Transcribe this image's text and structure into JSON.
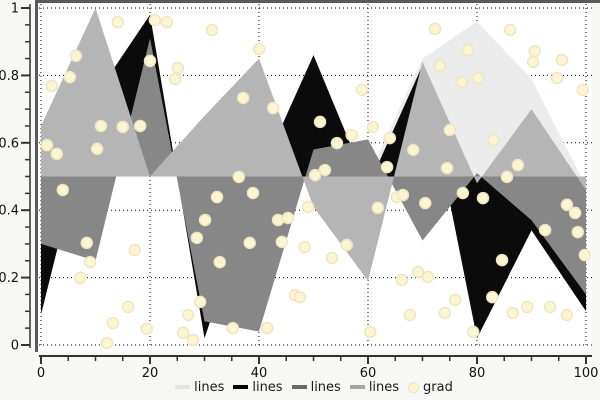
{
  "chart_data": {
    "type": "area",
    "title": "",
    "xlabel": "",
    "ylabel": "",
    "xlim": [
      0,
      100
    ],
    "ylim": [
      0,
      1
    ],
    "grid": "dotted",
    "baseline": 0.5,
    "x": [
      0,
      10,
      20,
      30,
      40,
      50,
      60,
      70,
      80,
      90,
      100
    ],
    "series": [
      {
        "name": "lines",
        "color": "#ececec",
        "values": [
          0.5,
          0.5,
          0.5,
          0.5,
          0.5,
          0.5,
          0.5,
          0.85,
          0.96,
          0.79,
          0.47
        ]
      },
      {
        "name": "lines",
        "color": "#0b0b0b",
        "values": [
          0.09,
          0.74,
          0.98,
          0.02,
          0.5,
          0.86,
          0.47,
          0.83,
          0.02,
          0.34,
          0.1
        ]
      },
      {
        "name": "lines",
        "color": "#878787",
        "values": [
          0.3,
          0.25,
          0.91,
          0.07,
          0.04,
          0.58,
          0.61,
          0.31,
          0.51,
          0.37,
          0.15
        ]
      },
      {
        "name": "lines",
        "color": "#b5b5b5",
        "values": [
          0.65,
          1.0,
          0.5,
          0.68,
          0.85,
          0.41,
          0.19,
          0.84,
          0.48,
          0.7,
          0.46
        ]
      }
    ],
    "scatter": {
      "name": "grad",
      "color": "#fbf5d2",
      "edge_color": "#eee6c3",
      "radius": 5.5,
      "points": [
        [
          14.1,
          0.958
        ],
        [
          20.9,
          0.964
        ],
        [
          23.1,
          0.958
        ],
        [
          31.4,
          0.935
        ],
        [
          40.0,
          0.878
        ],
        [
          6.4,
          0.858
        ],
        [
          20.0,
          0.843
        ],
        [
          25.1,
          0.822
        ],
        [
          24.6,
          0.789
        ],
        [
          5.3,
          0.795
        ],
        [
          2.0,
          0.769
        ],
        [
          37.1,
          0.733
        ],
        [
          42.6,
          0.703
        ],
        [
          11.0,
          0.65
        ],
        [
          15.0,
          0.647
        ],
        [
          18.2,
          0.65
        ],
        [
          1.1,
          0.593
        ],
        [
          2.9,
          0.567
        ],
        [
          10.3,
          0.582
        ],
        [
          4.0,
          0.46
        ],
        [
          36.3,
          0.499
        ],
        [
          32.3,
          0.439
        ],
        [
          38.9,
          0.451
        ],
        [
          8.4,
          0.303
        ],
        [
          9.0,
          0.246
        ],
        [
          7.2,
          0.199
        ],
        [
          17.2,
          0.282
        ],
        [
          16.0,
          0.113
        ],
        [
          13.2,
          0.065
        ],
        [
          12.1,
          0.006
        ],
        [
          19.4,
          0.048
        ],
        [
          26.1,
          0.036
        ],
        [
          27.0,
          0.089
        ],
        [
          27.9,
          0.015
        ],
        [
          29.2,
          0.128
        ],
        [
          30.1,
          0.371
        ],
        [
          28.6,
          0.318
        ],
        [
          32.8,
          0.246
        ],
        [
          35.2,
          0.05
        ],
        [
          38.3,
          0.303
        ],
        [
          41.5,
          0.05
        ],
        [
          43.5,
          0.371
        ],
        [
          45.3,
          0.377
        ],
        [
          44.2,
          0.306
        ],
        [
          46.6,
          0.148
        ],
        [
          51.2,
          0.662
        ],
        [
          58.9,
          0.757
        ],
        [
          54.3,
          0.599
        ],
        [
          57.0,
          0.623
        ],
        [
          60.9,
          0.647
        ],
        [
          64.0,
          0.614
        ],
        [
          50.3,
          0.504
        ],
        [
          52.1,
          0.519
        ],
        [
          49.0,
          0.41
        ],
        [
          61.8,
          0.407
        ],
        [
          65.3,
          0.439
        ],
        [
          63.5,
          0.528
        ],
        [
          66.4,
          0.445
        ],
        [
          68.3,
          0.579
        ],
        [
          70.5,
          0.421
        ],
        [
          72.3,
          0.938
        ],
        [
          78.3,
          0.875
        ],
        [
          86.1,
          0.935
        ],
        [
          90.6,
          0.872
        ],
        [
          90.3,
          0.84
        ],
        [
          95.6,
          0.846
        ],
        [
          94.7,
          0.792
        ],
        [
          99.4,
          0.757
        ],
        [
          77.2,
          0.78
        ],
        [
          80.2,
          0.792
        ],
        [
          73.2,
          0.828
        ],
        [
          75.0,
          0.638
        ],
        [
          83.0,
          0.608
        ],
        [
          85.5,
          0.499
        ],
        [
          87.5,
          0.534
        ],
        [
          74.5,
          0.525
        ],
        [
          77.4,
          0.451
        ],
        [
          81.1,
          0.436
        ],
        [
          96.5,
          0.416
        ],
        [
          48.4,
          0.291
        ],
        [
          53.4,
          0.258
        ],
        [
          56.1,
          0.297
        ],
        [
          47.5,
          0.142
        ],
        [
          60.4,
          0.039
        ],
        [
          66.2,
          0.193
        ],
        [
          69.2,
          0.217
        ],
        [
          71.0,
          0.202
        ],
        [
          67.7,
          0.089
        ],
        [
          74.1,
          0.095
        ],
        [
          76.0,
          0.134
        ],
        [
          79.3,
          0.039
        ],
        [
          82.8,
          0.142
        ],
        [
          84.6,
          0.252
        ],
        [
          86.6,
          0.095
        ],
        [
          89.2,
          0.113
        ],
        [
          92.5,
          0.341
        ],
        [
          93.4,
          0.113
        ],
        [
          96.5,
          0.089
        ],
        [
          98.0,
          0.392
        ],
        [
          98.5,
          0.335
        ],
        [
          99.8,
          0.267
        ]
      ]
    },
    "x_ticks": [
      0,
      20,
      40,
      60,
      80,
      100
    ],
    "x_tick_labels": [
      "0",
      "20",
      "40",
      "60",
      "80",
      "100"
    ],
    "x_minor_step": 5,
    "y_ticks": [
      0,
      0.2,
      0.4,
      0.6,
      0.8,
      1
    ],
    "y_tick_labels": [
      "0",
      "0.2",
      "0.4",
      "0.6",
      "0.8",
      "1"
    ],
    "y_minor_step": 0.05,
    "grid_color": "#000000",
    "axis_color": "#333333",
    "spine_color": "#5a5a5a",
    "tick_label_color": "#111111"
  },
  "legend": {
    "items": [
      {
        "label": "lines",
        "color": "#e4e4e4",
        "marker": "line"
      },
      {
        "label": "lines",
        "color": "#000000",
        "marker": "line"
      },
      {
        "label": "lines",
        "color": "#696969",
        "marker": "line"
      },
      {
        "label": "lines",
        "color": "#a3a3a3",
        "marker": "line"
      },
      {
        "label": "grad",
        "color": "#fbf5d2",
        "marker": "dot"
      }
    ]
  }
}
